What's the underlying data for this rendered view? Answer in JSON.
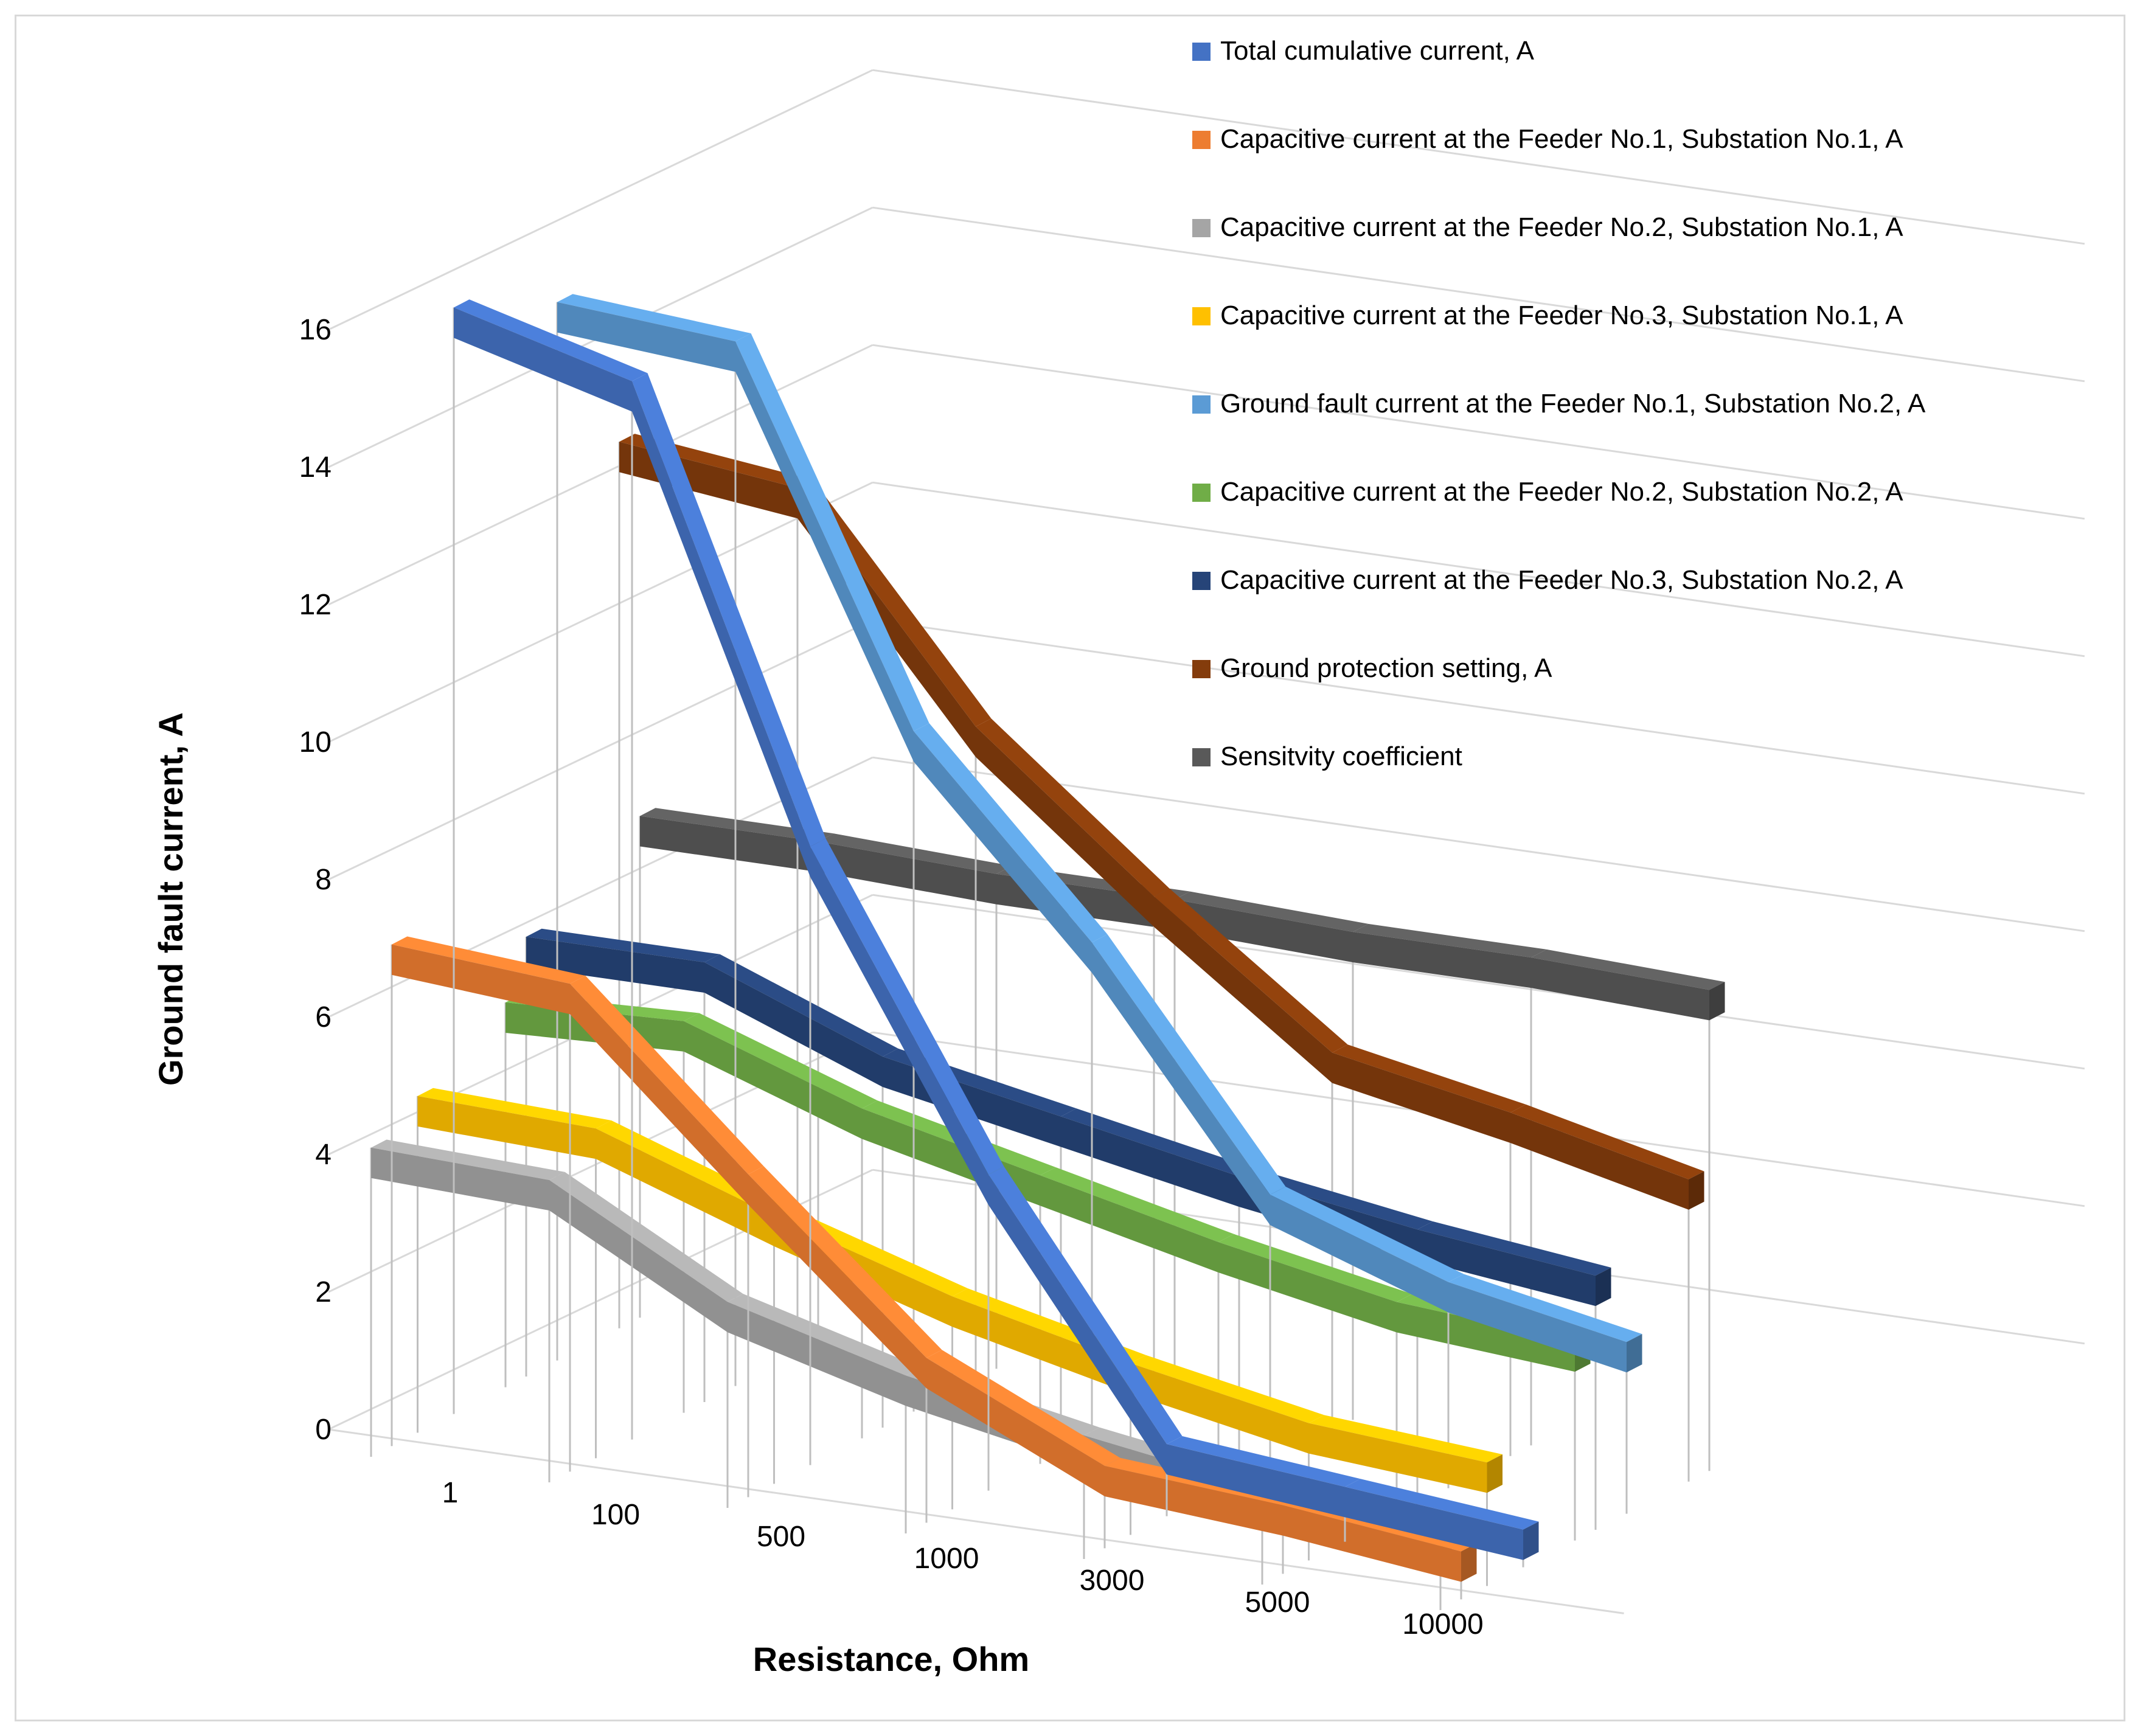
{
  "chart_data": {
    "type": "line",
    "style": "3d-ribbon",
    "title": "",
    "xlabel": "Resistance, Ohm",
    "ylabel": "Ground fault current, A",
    "categories": [
      "1",
      "100",
      "500",
      "1000",
      "3000",
      "5000",
      "10000"
    ],
    "ylim": [
      0,
      16
    ],
    "yticks": [
      "0",
      "2",
      "4",
      "6",
      "8",
      "10",
      "12",
      "14",
      "16"
    ],
    "grid": true,
    "legend_position": "top-right",
    "series": [
      {
        "name": "Total cumulative current, A",
        "color": "#4472c4",
        "values": [
          15.7,
          15.0,
          8.6,
          4.2,
          0.65,
          0.4,
          0.15
        ]
      },
      {
        "name": "Capacitive current at the Feeder No.1, Substation No.1, A",
        "color": "#ed7d31",
        "values": [
          6.9,
          6.7,
          4.3,
          2.0,
          0.8,
          0.6,
          0.3
        ]
      },
      {
        "name": "Capacitive current at the Feeder No.2, Substation No.1, A",
        "color": "#a5a5a5",
        "values": [
          4.1,
          4.0,
          2.6,
          1.9,
          1.4,
          1.0,
          0.85
        ]
      },
      {
        "name": "Capacitive current at the Feeder No.3, Substation No.1, A",
        "color": "#ffc000",
        "values": [
          4.5,
          4.4,
          3.5,
          2.7,
          2.1,
          1.6,
          1.4
        ]
      },
      {
        "name": " Ground fault current at the Feeder No.1, Substation No.2, A",
        "color": "#5b9bd5",
        "values": [
          15.0,
          14.8,
          9.5,
          6.8,
          3.5,
          2.6,
          2.1
        ]
      },
      {
        "name": "Capacitive current at the Feeder No.2, Substation No.2, A",
        "color": "#70ad47",
        "values": [
          5.2,
          5.3,
          4.4,
          3.8,
          3.2,
          2.7,
          2.5
        ]
      },
      {
        "name": " Capacitive current at the Feeder No.3, Substation No.2, A",
        "color": "#264478",
        "values": [
          6.0,
          6.0,
          5.0,
          4.5,
          4.0,
          3.6,
          3.3
        ]
      },
      {
        "name": "Ground protection setting, A",
        "color": "#843c0c",
        "values": [
          12.5,
          12.2,
          9.1,
          7.0,
          5.1,
          4.6,
          4.0
        ]
      },
      {
        "name": "Sensitvity coefficient",
        "color": "#595959",
        "values": [
          6.9,
          6.9,
          6.8,
          6.8,
          6.7,
          6.7,
          6.6
        ]
      }
    ]
  }
}
